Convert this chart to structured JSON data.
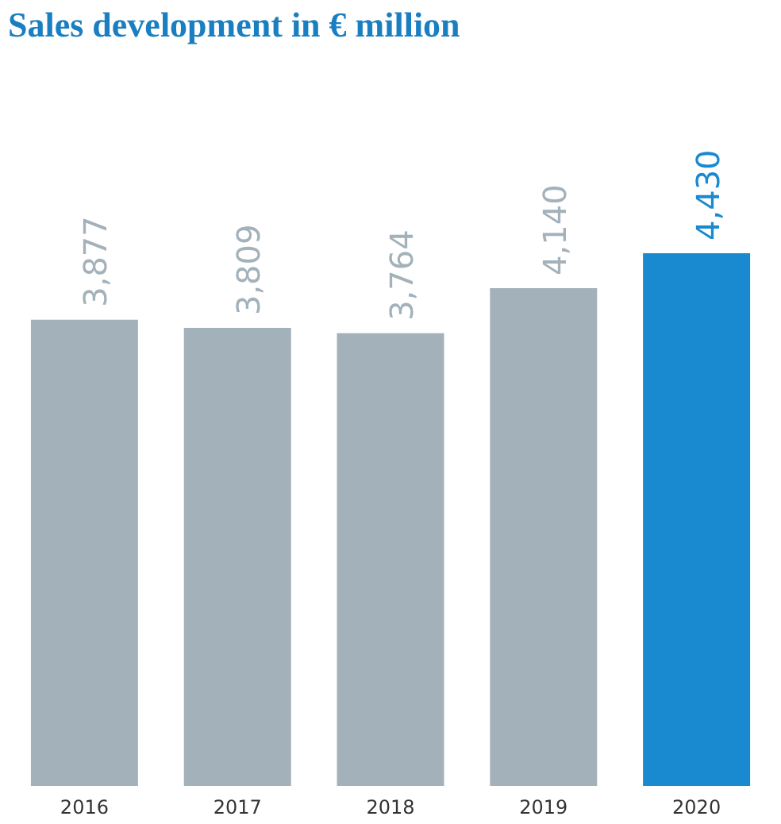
{
  "chart_data": {
    "type": "bar",
    "title": "Sales development in € million",
    "categories": [
      "2016",
      "2017",
      "2018",
      "2019",
      "2020"
    ],
    "values": [
      3877,
      3809,
      3764,
      4140,
      4430
    ],
    "colors": [
      "#a3b1ba",
      "#a3b1ba",
      "#a3b1ba",
      "#a3b1ba",
      "#1a8ad0"
    ],
    "value_labels": [
      "3,877",
      "3,809",
      "3,764",
      "4,140",
      "4,430"
    ],
    "grid": false
  }
}
